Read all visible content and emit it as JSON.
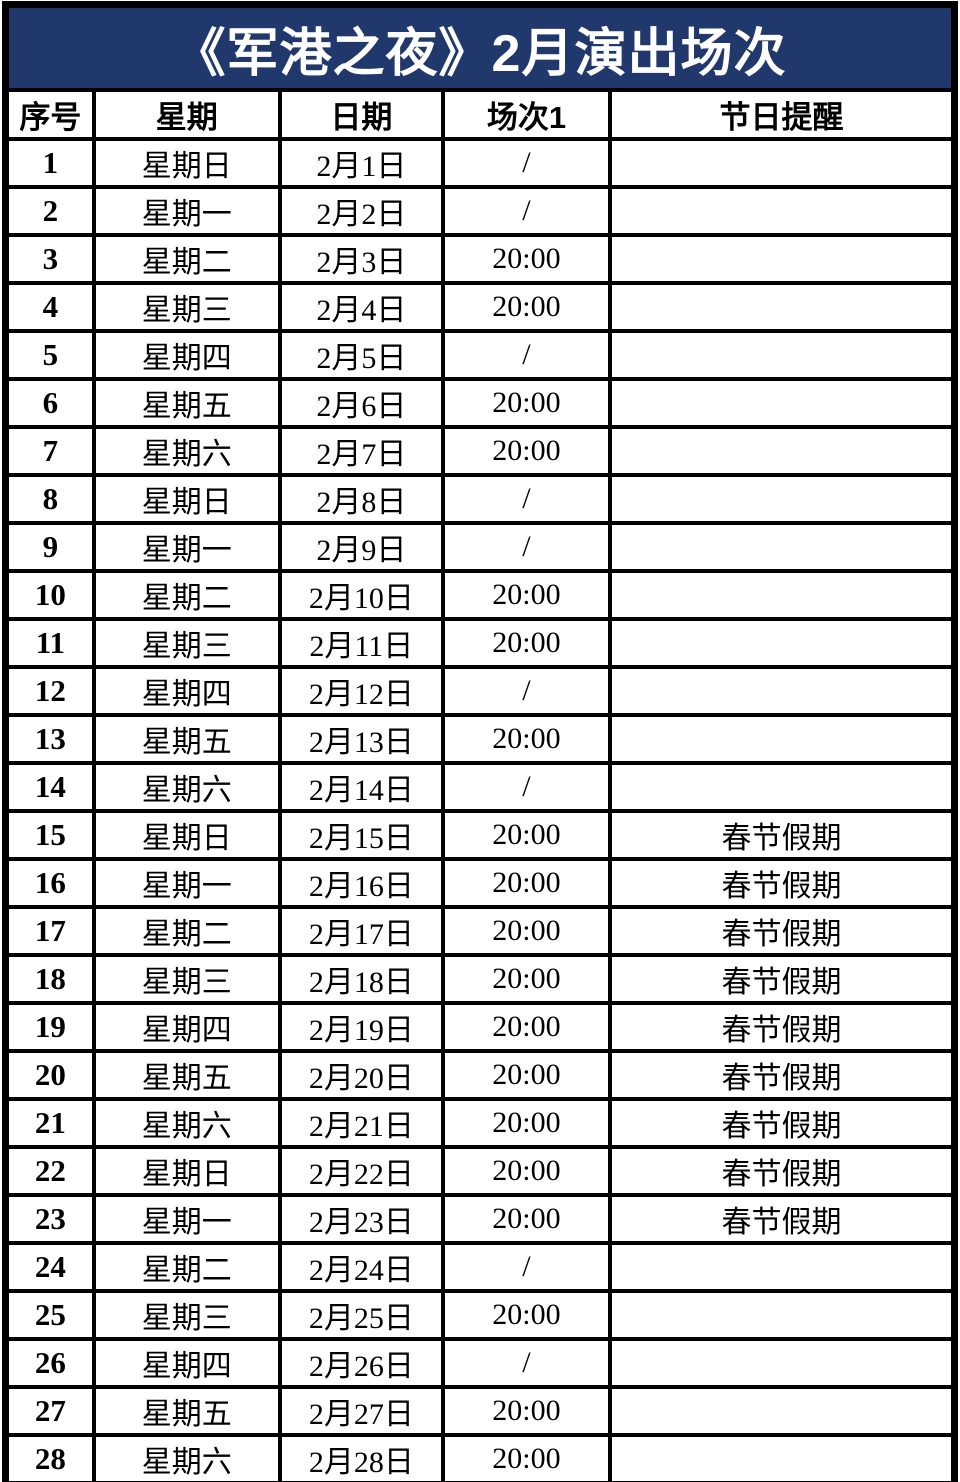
{
  "title": "《军港之夜》2月演出场次",
  "colors": {
    "title_bg": "#21386C",
    "title_text": "#FFFFFF",
    "border": "#000000",
    "cell_bg": "#FFFFFF",
    "cell_text": "#000000"
  },
  "table": {
    "columns": [
      "序号",
      "星期",
      "日期",
      "场次1",
      "节日提醒"
    ],
    "holiday_note": "春节假期",
    "no_show_marker": "/",
    "showtime_value": "20:00",
    "rows": [
      [
        "1",
        "星期日",
        "2月1日",
        "/",
        ""
      ],
      [
        "2",
        "星期一",
        "2月2日",
        "/",
        ""
      ],
      [
        "3",
        "星期二",
        "2月3日",
        "20:00",
        ""
      ],
      [
        "4",
        "星期三",
        "2月4日",
        "20:00",
        ""
      ],
      [
        "5",
        "星期四",
        "2月5日",
        "/",
        ""
      ],
      [
        "6",
        "星期五",
        "2月6日",
        "20:00",
        ""
      ],
      [
        "7",
        "星期六",
        "2月7日",
        "20:00",
        ""
      ],
      [
        "8",
        "星期日",
        "2月8日",
        "/",
        ""
      ],
      [
        "9",
        "星期一",
        "2月9日",
        "/",
        ""
      ],
      [
        "10",
        "星期二",
        "2月10日",
        "20:00",
        ""
      ],
      [
        "11",
        "星期三",
        "2月11日",
        "20:00",
        ""
      ],
      [
        "12",
        "星期四",
        "2月12日",
        "/",
        ""
      ],
      [
        "13",
        "星期五",
        "2月13日",
        "20:00",
        ""
      ],
      [
        "14",
        "星期六",
        "2月14日",
        "/",
        ""
      ],
      [
        "15",
        "星期日",
        "2月15日",
        "20:00",
        "春节假期"
      ],
      [
        "16",
        "星期一",
        "2月16日",
        "20:00",
        "春节假期"
      ],
      [
        "17",
        "星期二",
        "2月17日",
        "20:00",
        "春节假期"
      ],
      [
        "18",
        "星期三",
        "2月18日",
        "20:00",
        "春节假期"
      ],
      [
        "19",
        "星期四",
        "2月19日",
        "20:00",
        "春节假期"
      ],
      [
        "20",
        "星期五",
        "2月20日",
        "20:00",
        "春节假期"
      ],
      [
        "21",
        "星期六",
        "2月21日",
        "20:00",
        "春节假期"
      ],
      [
        "22",
        "星期日",
        "2月22日",
        "20:00",
        "春节假期"
      ],
      [
        "23",
        "星期一",
        "2月23日",
        "20:00",
        "春节假期"
      ],
      [
        "24",
        "星期二",
        "2月24日",
        "/",
        ""
      ],
      [
        "25",
        "星期三",
        "2月25日",
        "20:00",
        ""
      ],
      [
        "26",
        "星期四",
        "2月26日",
        "/",
        ""
      ],
      [
        "27",
        "星期五",
        "2月27日",
        "20:00",
        ""
      ],
      [
        "28",
        "星期六",
        "2月28日",
        "20:00",
        ""
      ]
    ]
  }
}
